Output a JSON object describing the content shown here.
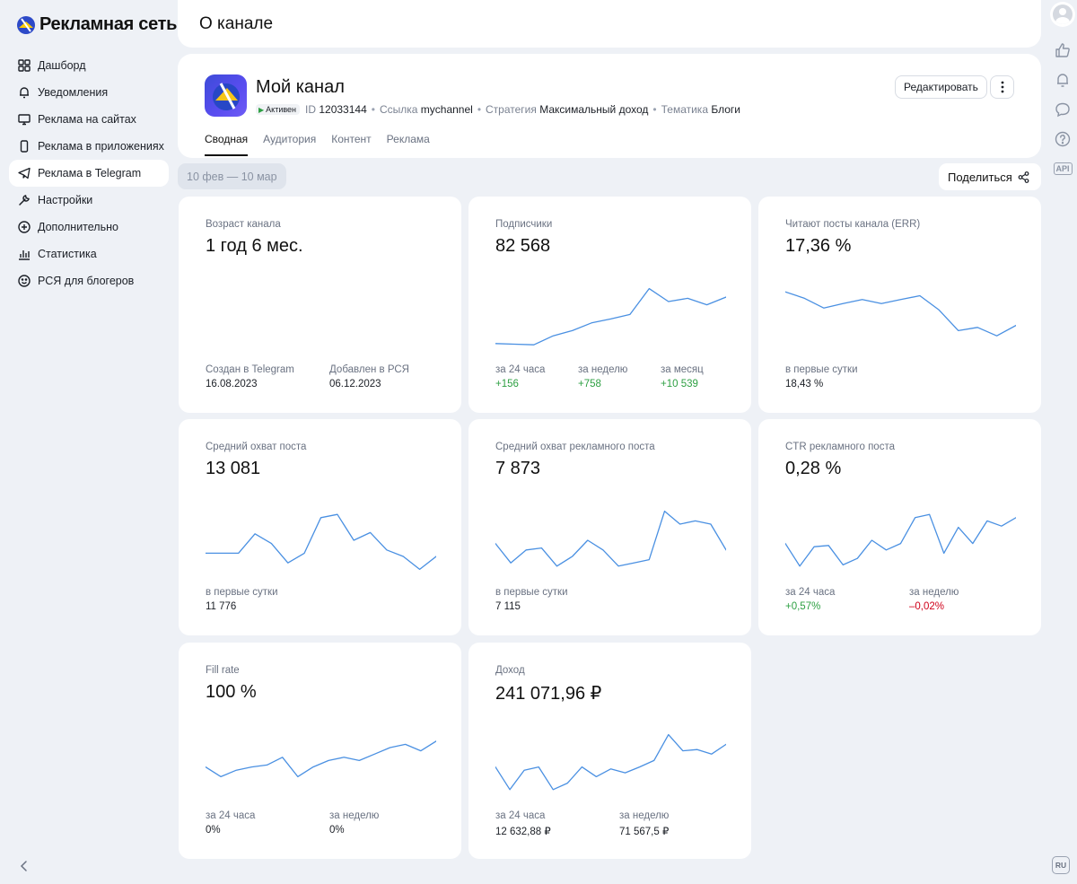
{
  "brand": {
    "name": "Рекламная сеть"
  },
  "sidebar": {
    "items": [
      {
        "label": "Дашборд",
        "icon": "dashboard-icon"
      },
      {
        "label": "Уведомления",
        "icon": "bell-icon"
      },
      {
        "label": "Реклама на сайтах",
        "icon": "monitor-icon"
      },
      {
        "label": "Реклама в приложениях",
        "icon": "phone-icon"
      },
      {
        "label": "Реклама в Telegram",
        "icon": "telegram-icon",
        "active": true
      },
      {
        "label": "Настройки",
        "icon": "wrench-icon"
      },
      {
        "label": "Дополнительно",
        "icon": "plus-circle-icon"
      },
      {
        "label": "Статистика",
        "icon": "chart-icon"
      },
      {
        "label": "РСЯ для блогеров",
        "icon": "smile-icon"
      }
    ]
  },
  "rail": {
    "lang": "RU",
    "api": "API"
  },
  "header": {
    "title": "О канале"
  },
  "channel": {
    "name": "Мой канал",
    "status": "Активен",
    "id_label": "ID",
    "id_value": "12033144",
    "link_label": "Ссылка",
    "link_value": "mychannel",
    "strategy_label": "Стратегия",
    "strategy_value": "Максимальный доход",
    "topic_label": "Тематика",
    "topic_value": "Блоги",
    "edit_label": "Редактировать",
    "tabs": [
      "Сводная",
      "Аудитория",
      "Контент",
      "Реклама"
    ]
  },
  "filter": {
    "date_range": "10 фев — 10 мар",
    "share_label": "Поделиться"
  },
  "colors": {
    "line": "#4a90e2",
    "positive": "#2ea043",
    "negative": "#d0021b"
  },
  "cards": {
    "age": {
      "label": "Возраст канала",
      "value": "1 год 6 мес.",
      "stats": [
        {
          "label": "Создан в Telegram",
          "value": "16.08.2023"
        },
        {
          "label": "Добавлен в РСЯ",
          "value": "06.12.2023"
        }
      ]
    },
    "subscribers": {
      "label": "Подписчики",
      "value": "82 568",
      "stats": [
        {
          "label": "за 24 часа",
          "value": "+156"
        },
        {
          "label": "за неделю",
          "value": "+758"
        },
        {
          "label": "за месяц",
          "value": "+10 539"
        }
      ]
    },
    "err": {
      "label": "Читают посты канала (ERR)",
      "value": "17,36 %",
      "stats": [
        {
          "label": "в первые сутки",
          "value": "18,43 %"
        }
      ]
    },
    "reach": {
      "label": "Средний охват поста",
      "value": "13 081",
      "stats": [
        {
          "label": "в первые сутки",
          "value": "11 776"
        }
      ]
    },
    "ad_reach": {
      "label": "Средний охват рекламного поста",
      "value": "7 873",
      "stats": [
        {
          "label": "в первые сутки",
          "value": "7 115"
        }
      ]
    },
    "ctr": {
      "label": "CTR рекламного поста",
      "value": "0,28 %",
      "stats": [
        {
          "label": "за 24 часа",
          "value": "+0,57%"
        },
        {
          "label": "за неделю",
          "value": "–0,02%"
        }
      ]
    },
    "fill": {
      "label": "Fill rate",
      "value": "100 %",
      "stats": [
        {
          "label": "за 24 часа",
          "value": "0%"
        },
        {
          "label": "за неделю",
          "value": "0%"
        }
      ]
    },
    "income": {
      "label": "Доход",
      "value": "241 071,96 ₽",
      "stats": [
        {
          "label": "за 24 часа",
          "value": "12 632,88 ₽"
        },
        {
          "label": "за неделю",
          "value": "71 567,5 ₽"
        }
      ]
    }
  },
  "sparklines": {
    "subscribers": [
      0.1,
      0.09,
      0.08,
      0.22,
      0.3,
      0.42,
      0.48,
      0.55,
      0.95,
      0.75,
      0.8,
      0.7,
      0.82
    ],
    "err": [
      0.9,
      0.8,
      0.65,
      0.72,
      0.78,
      0.72,
      0.78,
      0.84,
      0.62,
      0.3,
      0.35,
      0.22,
      0.38
    ],
    "reach": [
      0.3,
      0.3,
      0.3,
      0.6,
      0.45,
      0.15,
      0.3,
      0.85,
      0.9,
      0.5,
      0.62,
      0.35,
      0.25,
      0.05,
      0.25
    ],
    "ad_reach": [
      0.45,
      0.15,
      0.35,
      0.38,
      0.1,
      0.25,
      0.5,
      0.35,
      0.1,
      0.15,
      0.2,
      0.95,
      0.75,
      0.8,
      0.75,
      0.35
    ],
    "ctr": [
      0.45,
      0.1,
      0.4,
      0.42,
      0.12,
      0.22,
      0.5,
      0.35,
      0.45,
      0.85,
      0.9,
      0.3,
      0.7,
      0.45,
      0.8,
      0.72,
      0.85
    ],
    "fill": [
      0.45,
      0.3,
      0.4,
      0.45,
      0.48,
      0.6,
      0.3,
      0.45,
      0.55,
      0.6,
      0.55,
      0.65,
      0.75,
      0.8,
      0.7,
      0.85
    ],
    "income": [
      0.45,
      0.1,
      0.4,
      0.45,
      0.1,
      0.2,
      0.45,
      0.3,
      0.42,
      0.36,
      0.45,
      0.55,
      0.95,
      0.7,
      0.72,
      0.65,
      0.8
    ]
  }
}
